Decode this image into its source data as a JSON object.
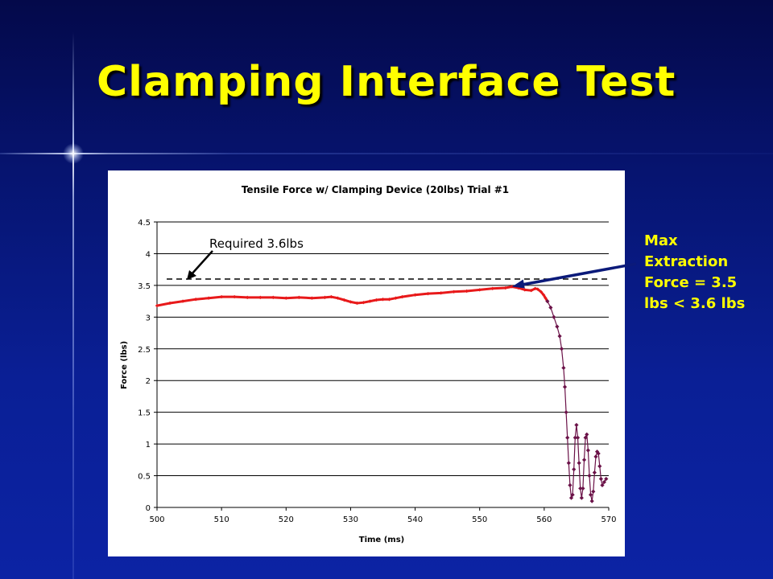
{
  "slide": {
    "title": "Clamping Interface Test",
    "side_note_lines": [
      "Max",
      "Extraction",
      "Force = 3.5",
      "lbs < 3.6 lbs"
    ],
    "colors": {
      "title": "#ffff00",
      "side_note": "#ffff00",
      "background_dark": "#04094a",
      "background_light": "#0c23a4",
      "arrow": "#0b1a7a"
    }
  },
  "chart_data": {
    "type": "scatter",
    "title": "Tensile Force w/ Clamping Device (20lbs) Trial #1",
    "xlabel": "Time (ms)",
    "ylabel": "Force (lbs)",
    "xlim": [
      500,
      570
    ],
    "ylim": [
      0,
      4.5
    ],
    "xticks": [
      500,
      510,
      520,
      530,
      540,
      550,
      560,
      570
    ],
    "yticks": [
      0,
      0.5,
      1,
      1.5,
      2,
      2.5,
      3,
      3.5,
      4,
      4.5
    ],
    "grid": "horizontal",
    "threshold": {
      "value": 3.6,
      "label": "Required 3.6lbs",
      "style": "dashed",
      "x_start": 501.5,
      "x_end": 570
    },
    "series": [
      {
        "color": "#e8191a",
        "marker": "diamond-small",
        "points": [
          [
            500,
            3.18
          ],
          [
            502,
            3.22
          ],
          [
            504,
            3.25
          ],
          [
            506,
            3.28
          ],
          [
            508,
            3.3
          ],
          [
            510,
            3.32
          ],
          [
            512,
            3.32
          ],
          [
            514,
            3.31
          ],
          [
            516,
            3.31
          ],
          [
            518,
            3.31
          ],
          [
            520,
            3.3
          ],
          [
            522,
            3.31
          ],
          [
            524,
            3.3
          ],
          [
            526,
            3.31
          ],
          [
            527,
            3.32
          ],
          [
            528,
            3.3
          ],
          [
            529,
            3.27
          ],
          [
            530,
            3.24
          ],
          [
            531,
            3.22
          ],
          [
            532,
            3.23
          ],
          [
            533,
            3.25
          ],
          [
            534,
            3.27
          ],
          [
            535,
            3.28
          ],
          [
            536,
            3.28
          ],
          [
            537,
            3.3
          ],
          [
            538,
            3.32
          ],
          [
            540,
            3.35
          ],
          [
            542,
            3.37
          ],
          [
            544,
            3.38
          ],
          [
            546,
            3.4
          ],
          [
            548,
            3.41
          ],
          [
            550,
            3.43
          ],
          [
            552,
            3.45
          ],
          [
            554,
            3.46
          ],
          [
            555,
            3.48
          ],
          [
            556,
            3.46
          ],
          [
            557,
            3.43
          ],
          [
            558,
            3.42
          ],
          [
            558.6,
            3.45
          ],
          [
            559,
            3.44
          ],
          [
            559.5,
            3.4
          ],
          [
            559.9,
            3.35
          ],
          [
            560.2,
            3.3
          ],
          [
            560.5,
            3.25
          ]
        ]
      },
      {
        "color": "#6b1248",
        "marker": "diamond",
        "points": [
          [
            560.5,
            3.25
          ],
          [
            561,
            3.15
          ],
          [
            561.5,
            3.0
          ],
          [
            562,
            2.85
          ],
          [
            562.4,
            2.7
          ],
          [
            562.7,
            2.5
          ],
          [
            563,
            2.2
          ],
          [
            563.2,
            1.9
          ],
          [
            563.4,
            1.5
          ],
          [
            563.6,
            1.1
          ],
          [
            563.8,
            0.7
          ],
          [
            564,
            0.35
          ],
          [
            564.2,
            0.15
          ],
          [
            564.4,
            0.2
          ],
          [
            564.6,
            0.6
          ],
          [
            564.8,
            1.1
          ],
          [
            565,
            1.3
          ],
          [
            565.2,
            1.1
          ],
          [
            565.4,
            0.7
          ],
          [
            565.6,
            0.3
          ],
          [
            565.8,
            0.15
          ],
          [
            566,
            0.3
          ],
          [
            566.2,
            0.75
          ],
          [
            566.4,
            1.1
          ],
          [
            566.6,
            1.15
          ],
          [
            566.8,
            0.9
          ],
          [
            567,
            0.5
          ],
          [
            567.2,
            0.2
          ],
          [
            567.4,
            0.1
          ],
          [
            567.6,
            0.25
          ],
          [
            567.8,
            0.55
          ],
          [
            568,
            0.8
          ],
          [
            568.2,
            0.88
          ],
          [
            568.4,
            0.85
          ],
          [
            568.6,
            0.65
          ],
          [
            568.8,
            0.45
          ],
          [
            569,
            0.35
          ],
          [
            569.3,
            0.4
          ],
          [
            569.6,
            0.45
          ]
        ]
      }
    ]
  }
}
